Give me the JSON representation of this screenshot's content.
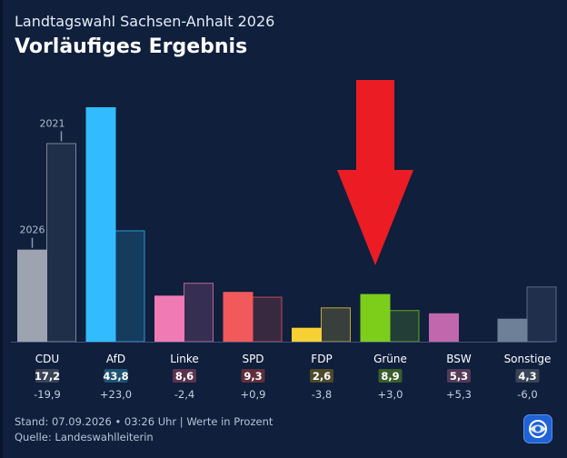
{
  "header": {
    "supertitle": "Landtagswahl Sachsen-Anhalt 2026",
    "title": "Vorläufiges Ergebnis"
  },
  "chart_data": {
    "type": "bar",
    "categories": [
      "CDU",
      "AfD",
      "Linke",
      "SPD",
      "FDP",
      "Grüne",
      "BSW",
      "Sonstige"
    ],
    "series": [
      {
        "name": "2026",
        "values": [
          17.2,
          43.8,
          8.6,
          9.3,
          2.6,
          8.9,
          5.3,
          4.3
        ]
      },
      {
        "name": "2021",
        "values": [
          37.1,
          20.8,
          11.0,
          8.4,
          6.4,
          5.9,
          0.0,
          10.3
        ]
      }
    ],
    "value_labels": [
      "17,2",
      "43,8",
      "8,6",
      "9,3",
      "2,6",
      "8,9",
      "5,3",
      "4,3"
    ],
    "diff_labels": [
      "-19,9",
      "+23,0",
      "-2,4",
      "+0,9",
      "-3,8",
      "+3,0",
      "+5,3",
      "-6,0"
    ],
    "colors_2026": [
      "#9ea3b0",
      "#33bbff",
      "#f07ab4",
      "#f2595b",
      "#f7d034",
      "#7dcd1b",
      "#c067ad",
      "#6e8097"
    ],
    "colors_2021": [
      "#9ea3b0",
      "#33bbff",
      "#f07ab4",
      "#f2595b",
      "#f7d034",
      "#7dcd1b",
      "#c067ad",
      "#6e8097"
    ],
    "badge_colors": [
      "#3a4256",
      "#1e5273",
      "#5a344e",
      "#5e2e3b",
      "#4d4a2c",
      "#3a5e2a",
      "#533a58",
      "#394457"
    ],
    "ylim": [
      0,
      45
    ],
    "series_annotations": [
      "2026",
      "2021"
    ]
  },
  "footer": {
    "line1": "Stand: 07.09.2026 • 03:26 Uhr | Werte in Prozent",
    "line2": "Quelle: Landeswahlleiterin"
  },
  "annotation": {
    "arrow_color": "#ec1c24"
  },
  "logo": {
    "icon": "tagesschau-logo-icon"
  }
}
